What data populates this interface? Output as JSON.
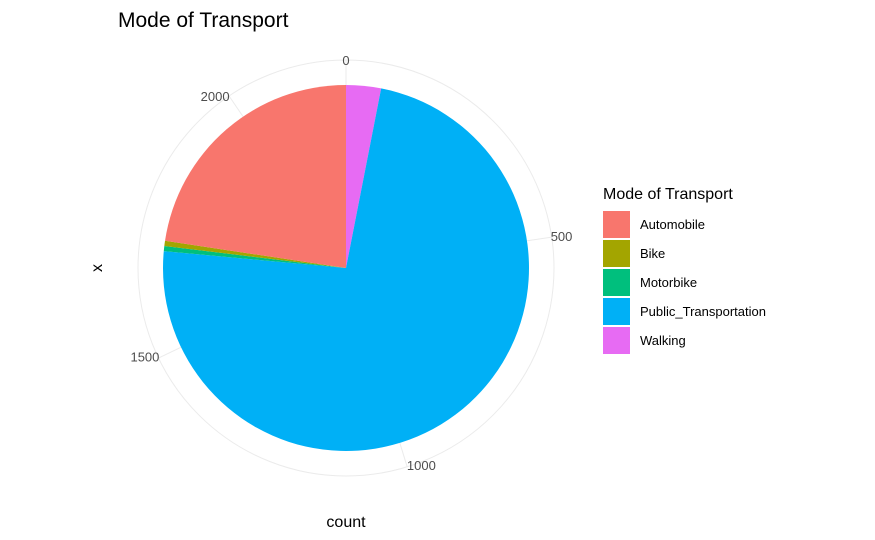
{
  "chart_data": {
    "type": "pie",
    "title": "Mode of Transport",
    "xlabel": "x",
    "ylabel": "count",
    "theta_ticks": [
      0,
      500,
      1000,
      1500,
      2000
    ],
    "theta_max": 2210,
    "slices": [
      {
        "name": "Walking",
        "value": 68,
        "color": "#E76BF3"
      },
      {
        "name": "Public_Transportation",
        "value": 1622,
        "color": "#00B0F6"
      },
      {
        "name": "Motorbike",
        "value": 10,
        "color": "#00BF7D"
      },
      {
        "name": "Bike",
        "value": 10,
        "color": "#A3A500"
      },
      {
        "name": "Automobile",
        "value": 500,
        "color": "#F8766D"
      }
    ],
    "legend": {
      "title": "Mode of Transport",
      "position": "right",
      "items": [
        {
          "label": "Automobile",
          "color": "#F8766D"
        },
        {
          "label": "Bike",
          "color": "#A3A500"
        },
        {
          "label": "Motorbike",
          "color": "#00BF7D"
        },
        {
          "label": "Public_Transportation",
          "color": "#00B0F6"
        },
        {
          "label": "Walking",
          "color": "#E76BF3"
        }
      ]
    },
    "grid": true
  }
}
